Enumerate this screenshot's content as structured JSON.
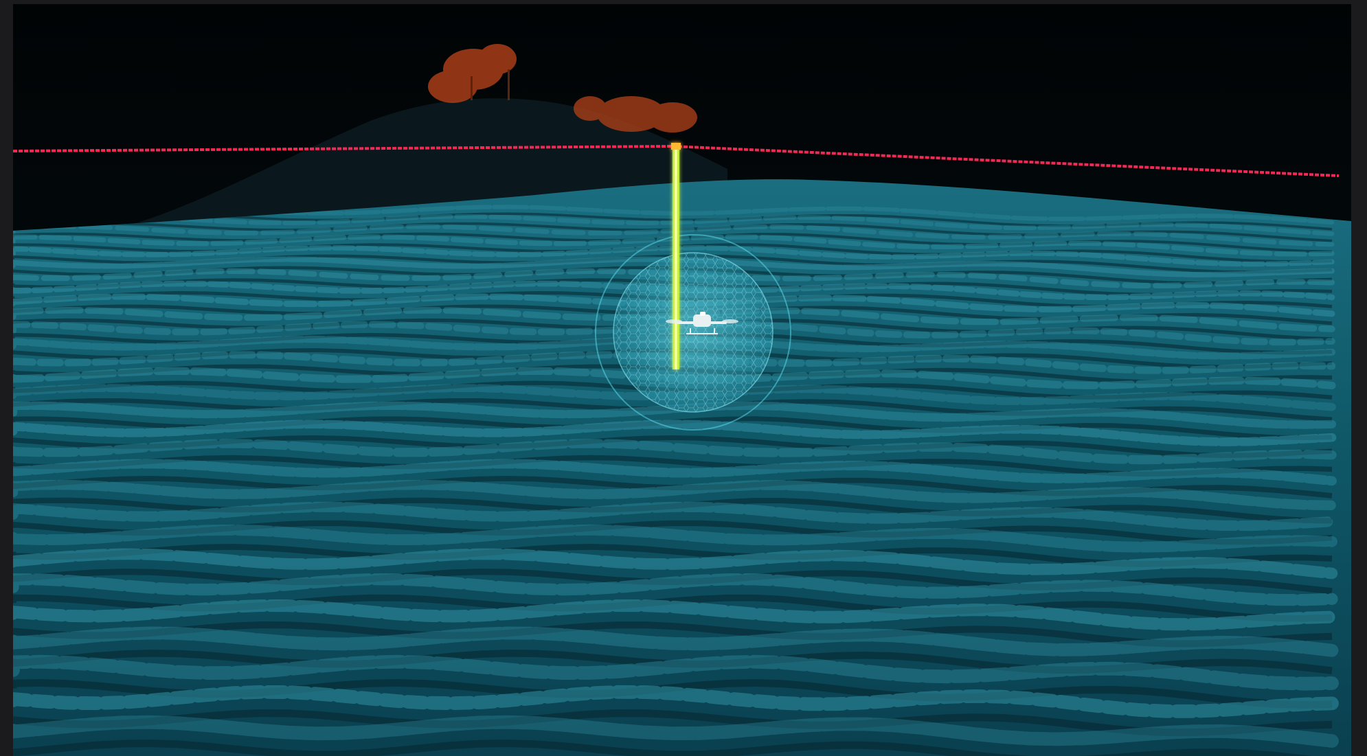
{
  "scene": {
    "description_label": "",
    "colors": {
      "frame_border": "#1b1b1d",
      "night_sky": "#020608",
      "hill_silhouette": "#0b1a20",
      "point_cloud_crop": "#0f5a6a",
      "crop_highlight": "#2f8ea0",
      "crop_shadow": "#06242e",
      "tree_canopy": "#b1441a",
      "power_line": "#ff2a5a",
      "laser_beam": "#d8ff3a",
      "scan_circle": "#58d6e6"
    },
    "icons": {
      "drone": "drone-icon",
      "laser": "laser-beam-icon",
      "scan_area": "scan-zone-icon"
    }
  }
}
